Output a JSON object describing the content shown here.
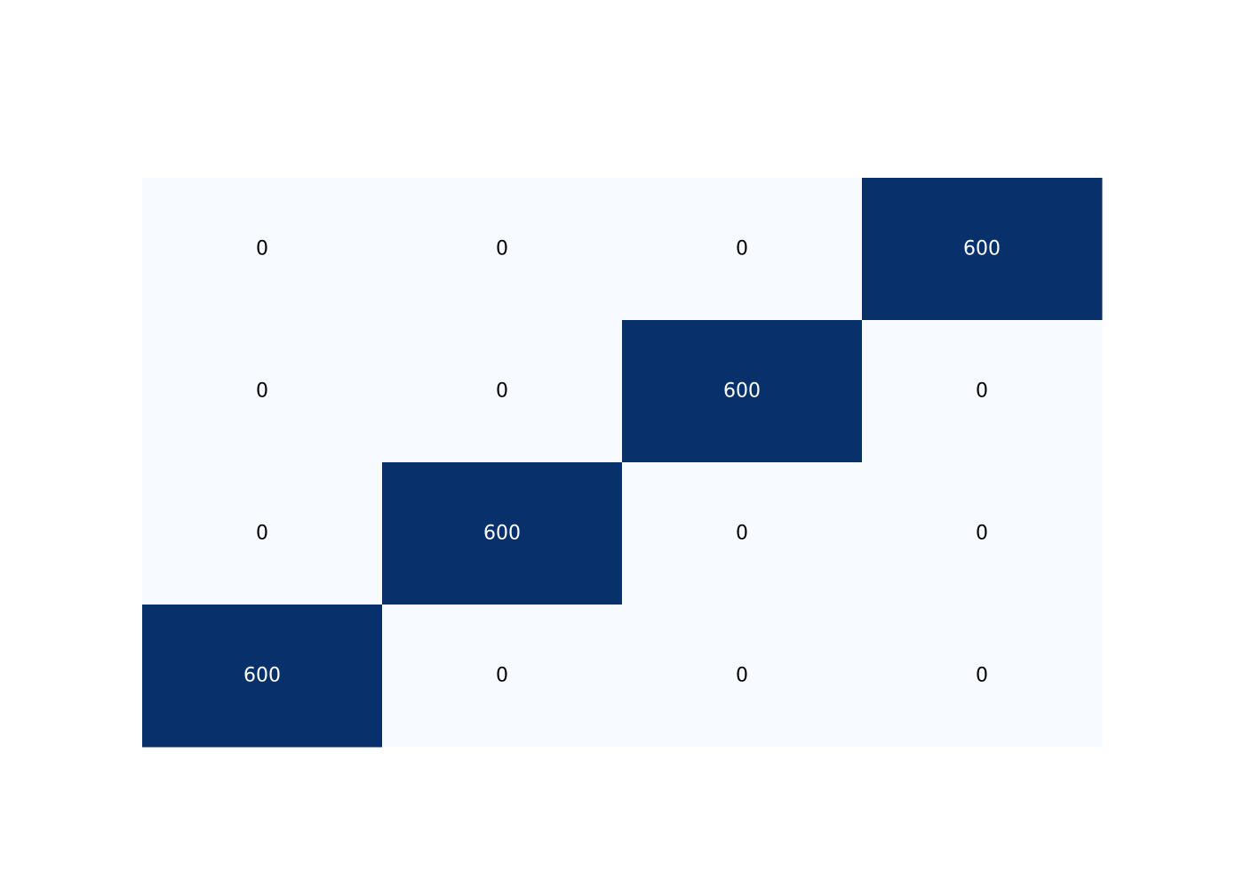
{
  "chart_data": {
    "type": "heatmap",
    "title": "",
    "xlabel": "",
    "ylabel": "",
    "rows": 4,
    "cols": 4,
    "values": [
      [
        0,
        0,
        0,
        600
      ],
      [
        0,
        0,
        600,
        0
      ],
      [
        0,
        600,
        0,
        0
      ],
      [
        600,
        0,
        0,
        0
      ]
    ],
    "value_range": [
      0,
      600
    ],
    "colormap": {
      "low": "#f7fbff",
      "high": "#08306b"
    },
    "label_colors": {
      "on_light": "#000000",
      "on_dark": "#ffffff"
    },
    "annotations": true,
    "grid": false,
    "colorbar": false
  }
}
